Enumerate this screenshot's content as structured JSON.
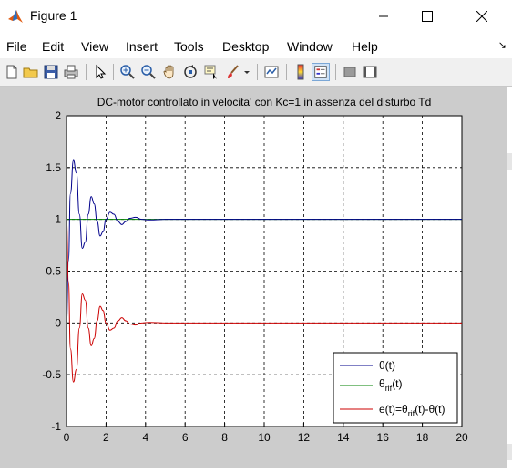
{
  "window": {
    "title": "Figure 1",
    "app_icon": "matlab-logo-icon"
  },
  "menu": {
    "items": [
      "File",
      "Edit",
      "View",
      "Insert",
      "Tools",
      "Desktop",
      "Window",
      "Help"
    ],
    "dock_arrow": "dock-arrow-icon"
  },
  "toolbar": {
    "buttons": [
      "new-figure-icon",
      "open-file-icon",
      "save-icon",
      "print-icon",
      "edit-plot-arrow-icon",
      "zoom-in-icon",
      "zoom-out-icon",
      "pan-hand-icon",
      "rotate-3d-icon",
      "data-cursor-icon",
      "brush-icon",
      "brush-dropdown-icon",
      "link-plot-icon",
      "colorbar-icon",
      "legend-icon",
      "hide-plot-tools-icon",
      "show-plot-tools-icon"
    ]
  },
  "chart_data": {
    "type": "line",
    "title": "DC-motor controllato in velocita' con Kc=1 in assenza del disturbo Td",
    "xlim": [
      0,
      20
    ],
    "ylim": [
      -1,
      2
    ],
    "xticks": [
      "0",
      "2",
      "4",
      "6",
      "8",
      "10",
      "12",
      "14",
      "16",
      "18",
      "20"
    ],
    "yticks": [
      "-1",
      "-0.5",
      "0",
      "0.5",
      "1",
      "1.5",
      "2"
    ],
    "grid": true,
    "legend_position": "bottom-right",
    "legend": [
      {
        "label": "θ(t)",
        "color": "#00008b"
      },
      {
        "label": "θ_rif(t)",
        "color": "#008000"
      },
      {
        "label": "e(t)=θ_rif(t)-θ(t)",
        "color": "#cc0000"
      }
    ],
    "series": [
      {
        "name": "θ(t)",
        "color": "#00008b",
        "x": [
          0,
          0.1,
          0.2,
          0.35,
          0.5,
          0.65,
          0.8,
          0.95,
          1.1,
          1.25,
          1.4,
          1.55,
          1.7,
          1.85,
          2.0,
          2.2,
          2.4,
          2.6,
          2.8,
          3.0,
          3.2,
          3.5,
          3.8,
          4.2,
          5,
          20
        ],
        "y": [
          0,
          0.6,
          1.25,
          1.57,
          1.45,
          1.05,
          0.72,
          0.78,
          1.05,
          1.22,
          1.15,
          0.98,
          0.84,
          0.88,
          1.0,
          1.07,
          1.05,
          0.98,
          0.95,
          0.98,
          1.01,
          1.02,
          1.0,
          0.995,
          1.0,
          1.0
        ]
      },
      {
        "name": "θ_rif(t)",
        "color": "#008000",
        "x": [
          0,
          20
        ],
        "y": [
          1,
          1
        ]
      },
      {
        "name": "e(t)=θ_rif(t)-θ(t)",
        "color": "#cc0000",
        "x": [
          0,
          0.1,
          0.2,
          0.35,
          0.5,
          0.65,
          0.8,
          0.95,
          1.1,
          1.25,
          1.4,
          1.55,
          1.7,
          1.85,
          2.0,
          2.2,
          2.4,
          2.6,
          2.8,
          3.0,
          3.2,
          3.5,
          3.8,
          4.2,
          5,
          20
        ],
        "y": [
          1,
          0.4,
          -0.25,
          -0.57,
          -0.45,
          -0.05,
          0.28,
          0.22,
          -0.05,
          -0.22,
          -0.15,
          0.02,
          0.16,
          0.12,
          0.0,
          -0.07,
          -0.05,
          0.02,
          0.05,
          0.02,
          -0.01,
          -0.02,
          0.0,
          0.005,
          0.0,
          0.0
        ]
      }
    ]
  }
}
